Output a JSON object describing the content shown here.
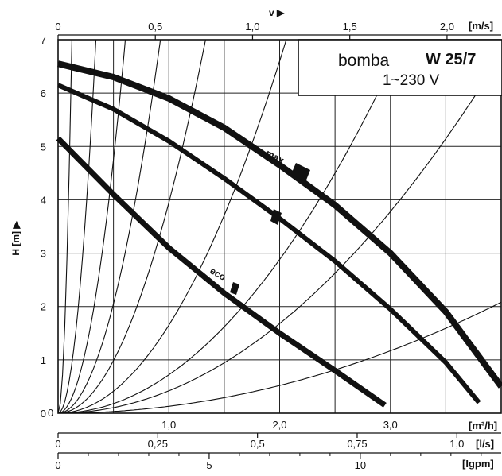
{
  "chart_data": {
    "type": "line",
    "title": "",
    "info_box": {
      "pump": "bomba",
      "model": "W 25/7",
      "supply": "1~230 V"
    },
    "y_axis": {
      "label": "H [m] ▶",
      "range": [
        0,
        7
      ],
      "ticks": [
        "0",
        "1",
        "2",
        "3",
        "4",
        "5",
        "6",
        "7"
      ]
    },
    "x_axis_m3h": {
      "unit": "[m³/h]",
      "range": [
        0,
        4
      ],
      "ticks": [
        {
          "v": 1.0,
          "t": "1,0"
        },
        {
          "v": 2.0,
          "t": "2,0"
        },
        {
          "v": 3.0,
          "t": "3,0"
        }
      ],
      "zero": "0"
    },
    "top_axis_velocity": {
      "label": "v ▶",
      "unit": "[m/s]",
      "ticks": [
        {
          "v": 0,
          "t": "0"
        },
        {
          "v": 0.5,
          "t": "0,5"
        },
        {
          "v": 1.0,
          "t": "1,0"
        },
        {
          "v": 1.5,
          "t": "1,5"
        },
        {
          "v": 2.0,
          "t": "2,0"
        }
      ]
    },
    "x_axis_ls": {
      "unit": "[l/s]",
      "ticks": [
        {
          "v": 0,
          "t": "0"
        },
        {
          "v": 0.25,
          "t": "0,25"
        },
        {
          "v": 0.5,
          "t": "0,5"
        },
        {
          "v": 0.75,
          "t": "0,75"
        },
        {
          "v": 1.0,
          "t": "1,0"
        }
      ]
    },
    "x_axis_igpm": {
      "unit": "[Igpm]",
      "ticks": [
        {
          "v": 0,
          "t": "0"
        },
        {
          "v": 5,
          "t": "5"
        },
        {
          "v": 10,
          "t": "10"
        }
      ]
    },
    "grid": true,
    "series": [
      {
        "name": "max",
        "stroke": 8,
        "x": [
          0,
          0.5,
          1.0,
          1.5,
          2.0,
          2.5,
          3.0,
          3.5,
          3.75,
          4.0
        ],
        "y": [
          6.55,
          6.3,
          5.9,
          5.35,
          4.65,
          3.9,
          3.0,
          1.9,
          1.2,
          0.5
        ]
      },
      {
        "name": "",
        "stroke": 6,
        "x": [
          0,
          0.5,
          1.0,
          1.5,
          2.0,
          2.5,
          3.0,
          3.5,
          3.8
        ],
        "y": [
          6.15,
          5.7,
          5.1,
          4.4,
          3.65,
          2.85,
          1.95,
          0.95,
          0.2
        ]
      },
      {
        "name": "eco",
        "stroke": 7,
        "x": [
          0,
          0.5,
          1.0,
          1.5,
          2.0,
          2.5,
          2.95
        ],
        "y": [
          5.15,
          4.1,
          3.1,
          2.25,
          1.5,
          0.8,
          0.15
        ]
      }
    ],
    "system_curves_k": [
      450,
      60,
      19,
      8.2,
      3.95,
      1.65,
      0.72,
      0.42,
      0.13
    ],
    "colors": {
      "line": "#111111",
      "grid": "#222222",
      "background": "#ffffff"
    }
  }
}
